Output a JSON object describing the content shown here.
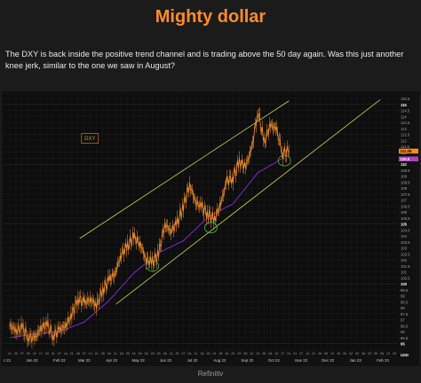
{
  "header": {
    "title": "Mighty dollar",
    "paragraph": "The DXY is back inside the positive trend channel and is trading above the 50 day again. Was this just another knee jerk, similar to the one we saw in August?"
  },
  "footer": {
    "source": "Refinitiv"
  },
  "colors": {
    "title": "#ff8c2a",
    "candles": "#e8892a",
    "ma50": "#8a2be2",
    "channel": "#c8d84a",
    "highlight": "#44aa44",
    "last_price_badge": "#ff8c1a",
    "ma_badge": "#b040c0"
  },
  "chart_data": {
    "type": "line",
    "label_box": "DXY",
    "x_tick_labels": [
      "21",
      "20",
      "27",
      "03",
      "10",
      "17",
      "24",
      "31",
      "07",
      "14",
      "21",
      "28",
      "07",
      "14",
      "21",
      "28",
      "04",
      "11",
      "18",
      "25",
      "02",
      "09",
      "16",
      "23",
      "30",
      "06",
      "13",
      "20",
      "27",
      "04",
      "11",
      "18",
      "25",
      "01",
      "08",
      "15",
      "22",
      "29",
      "05",
      "12",
      "19",
      "26",
      "03",
      "10",
      "17",
      "24",
      "31",
      "07",
      "14",
      "21",
      "28",
      "05",
      "12",
      "19",
      "26",
      "02",
      "09",
      "16",
      "23",
      "30",
      "06",
      "13",
      "20",
      "27",
      "04",
      "11",
      "18",
      "25",
      "01",
      "08",
      "15",
      "22",
      "29",
      "05",
      "12",
      "19",
      "26",
      "02",
      "09",
      "16",
      "23",
      "30",
      "06",
      "13",
      "20",
      "27"
    ],
    "x_month_labels": [
      "c 21",
      "Jan 22",
      "Feb 22",
      "Mar 22",
      "Apr 22",
      "May 22",
      "Jun 22",
      "Jul 22",
      "Aug 22",
      "Sep 22",
      "Oct 22",
      "Nov 22",
      "Dec 22",
      "Jan 23",
      "Feb 23"
    ],
    "y_axis_label": "USD",
    "y_ticks": [
      95,
      95.5,
      96,
      96.5,
      97,
      97.5,
      98,
      98.5,
      99,
      99.5,
      100,
      100.5,
      101,
      101.5,
      102,
      102.5,
      103,
      103.5,
      104,
      104.5,
      105,
      105.5,
      106,
      106.5,
      107,
      107.5,
      108,
      108.5,
      109,
      109.5,
      110,
      110.5,
      111,
      111.5,
      112,
      112.5,
      113,
      113.5,
      114,
      114.5,
      115,
      115.5
    ],
    "y_bold_ticks": [
      95,
      100,
      105,
      110,
      115
    ],
    "ylim": [
      94.6,
      115.8
    ],
    "last_price_label": "111.08",
    "ma_value_label": "110.5",
    "series": [
      {
        "values": [
          {
            "x": "2021-12-21",
            "y": 96.5
          },
          {
            "x": "2021-12-28",
            "y": 96.1
          },
          {
            "x": "2022-01-04",
            "y": 96.3
          },
          {
            "x": "2022-01-11",
            "y": 95.6
          },
          {
            "x": "2022-01-18",
            "y": 95.4
          },
          {
            "x": "2022-01-25",
            "y": 96.3
          },
          {
            "x": "2022-02-01",
            "y": 96.6
          },
          {
            "x": "2022-02-08",
            "y": 95.7
          },
          {
            "x": "2022-02-15",
            "y": 96.1
          },
          {
            "x": "2022-02-22",
            "y": 96.5
          },
          {
            "x": "2022-03-01",
            "y": 97.4
          },
          {
            "x": "2022-03-08",
            "y": 98.8
          },
          {
            "x": "2022-03-15",
            "y": 98.4
          },
          {
            "x": "2022-03-22",
            "y": 98.7
          },
          {
            "x": "2022-03-29",
            "y": 98.2
          },
          {
            "x": "2022-04-05",
            "y": 99.5
          },
          {
            "x": "2022-04-12",
            "y": 100.3
          },
          {
            "x": "2022-04-19",
            "y": 100.9
          },
          {
            "x": "2022-04-26",
            "y": 102.5
          },
          {
            "x": "2022-05-03",
            "y": 103.2
          },
          {
            "x": "2022-05-10",
            "y": 103.9
          },
          {
            "x": "2022-05-17",
            "y": 103.4
          },
          {
            "x": "2022-05-24",
            "y": 102.0
          },
          {
            "x": "2022-05-31",
            "y": 101.8
          },
          {
            "x": "2022-06-07",
            "y": 102.5
          },
          {
            "x": "2022-06-14",
            "y": 105.0
          },
          {
            "x": "2022-06-21",
            "y": 104.4
          },
          {
            "x": "2022-06-28",
            "y": 105.1
          },
          {
            "x": "2022-07-05",
            "y": 106.5
          },
          {
            "x": "2022-07-12",
            "y": 108.3
          },
          {
            "x": "2022-07-19",
            "y": 106.8
          },
          {
            "x": "2022-07-26",
            "y": 106.4
          },
          {
            "x": "2022-08-02",
            "y": 105.8
          },
          {
            "x": "2022-08-09",
            "y": 105.4
          },
          {
            "x": "2022-08-16",
            "y": 106.7
          },
          {
            "x": "2022-08-23",
            "y": 108.6
          },
          {
            "x": "2022-08-30",
            "y": 108.9
          },
          {
            "x": "2022-09-06",
            "y": 110.2
          },
          {
            "x": "2022-09-13",
            "y": 109.8
          },
          {
            "x": "2022-09-20",
            "y": 111.3
          },
          {
            "x": "2022-09-27",
            "y": 114.5
          },
          {
            "x": "2022-10-04",
            "y": 111.8
          },
          {
            "x": "2022-10-11",
            "y": 113.3
          },
          {
            "x": "2022-10-18",
            "y": 112.9
          },
          {
            "x": "2022-10-25",
            "y": 110.9
          },
          {
            "x": "2022-11-01",
            "y": 111.1
          }
        ]
      },
      {
        "name": "50 day",
        "values": [
          {
            "x": "2021-12-21",
            "y": 95.5
          },
          {
            "x": "2022-01-18",
            "y": 95.8
          },
          {
            "x": "2022-02-15",
            "y": 96.0
          },
          {
            "x": "2022-03-15",
            "y": 96.8
          },
          {
            "x": "2022-04-12",
            "y": 98.6
          },
          {
            "x": "2022-05-10",
            "y": 100.9
          },
          {
            "x": "2022-06-07",
            "y": 102.6
          },
          {
            "x": "2022-07-05",
            "y": 103.6
          },
          {
            "x": "2022-08-02",
            "y": 105.6
          },
          {
            "x": "2022-08-30",
            "y": 106.7
          },
          {
            "x": "2022-09-27",
            "y": 109.3
          },
          {
            "x": "2022-10-25",
            "y": 110.5
          }
        ]
      }
    ],
    "trend_lines": [
      {
        "name": "channel-upper",
        "points": [
          {
            "x": "2022-03-10",
            "y": 103.8
          },
          {
            "x": "2022-11-01",
            "y": 115.3
          }
        ]
      },
      {
        "name": "channel-lower",
        "points": [
          {
            "x": "2022-04-20",
            "y": 98.3
          },
          {
            "x": "2023-02-12",
            "y": 115.4
          }
        ]
      }
    ],
    "highlights": [
      {
        "x": "2022-05-31",
        "y": 101.5
      },
      {
        "x": "2022-08-05",
        "y": 104.7
      },
      {
        "x": "2022-10-27",
        "y": 110.3
      }
    ]
  }
}
